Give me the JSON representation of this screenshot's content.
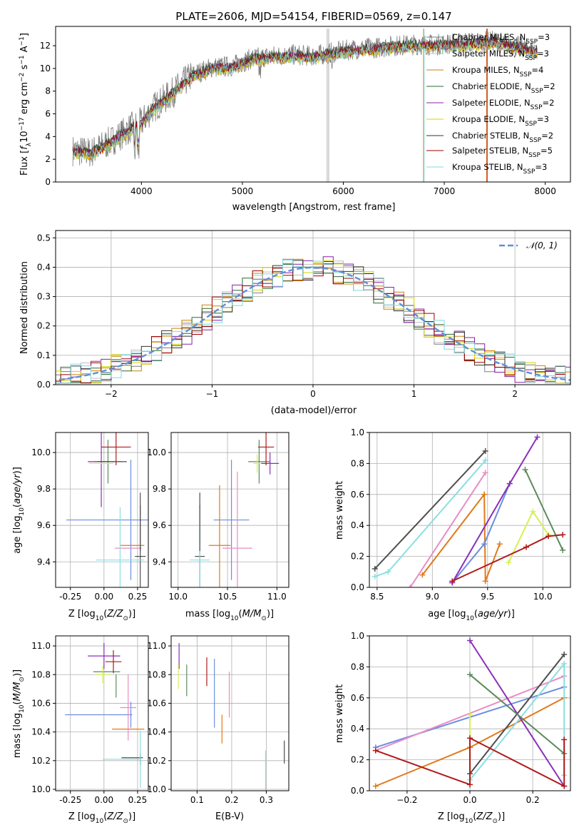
{
  "figure": {
    "title": "PLATE=2606, MJD=54154, FIBERID=0569, z=0.147"
  },
  "colors": {
    "cm": "#7f7f7f",
    "sm": "#bfbfbf",
    "km": "#d08000",
    "ce": "#2e6b2e",
    "se": "#8b1fa8",
    "ke": "#d4d400",
    "cs": "#333333",
    "ss": "#9b0000",
    "ks": "#7fd8e0",
    "blue": "#6a8ee0",
    "orange": "#e07a1a",
    "pink": "#e98cc4",
    "dark": "#4d4d4d",
    "green": "#5c8a5c",
    "purple": "#8b2fb8",
    "lime": "#d6ef5a",
    "red": "#b01a1a",
    "cyan": "#8adfe2",
    "normal": "#5f8fd8"
  },
  "chart_data": [
    {
      "type": "line",
      "xlabel": "wavelength [Angstrom, rest frame]",
      "ylabel": "Flux [f_λ10^-17 erg cm^-2 s^-1 A^-1]",
      "xlim": [
        3150,
        8250
      ],
      "ylim": [
        0,
        13.7
      ],
      "xticks": [
        4000,
        5000,
        6000,
        7000,
        8000
      ],
      "yticks": [
        0,
        2,
        4,
        6,
        8,
        10,
        12
      ],
      "series": [
        {
          "name": "Chabrier MILES, N_SSP=3",
          "key": "cm"
        },
        {
          "name": "Salpeter MILES, N_SSP=3",
          "key": "sm"
        },
        {
          "name": "Kroupa MILES, N_SSP=4",
          "key": "km"
        },
        {
          "name": "Chabrier ELODIE, N_SSP=2",
          "key": "ce"
        },
        {
          "name": "Salpeter ELODIE, N_SSP=2",
          "key": "se"
        },
        {
          "name": "Kroupa ELODIE, N_SSP=3",
          "key": "ke"
        },
        {
          "name": "Chabrier STELIB, N_SSP=2",
          "key": "cs"
        },
        {
          "name": "Salpeter STELIB, N_SSP=5",
          "key": "ss"
        },
        {
          "name": "Kroupa STELIB, N_SSP=3",
          "key": "ks"
        }
      ],
      "spectrum_shape": {
        "x": [
          3300,
          3500,
          3700,
          3900,
          4000,
          4100,
          4300,
          4500,
          4700,
          4900,
          5100,
          5300,
          5500,
          5700,
          5900,
          6100,
          6300,
          6500,
          6700,
          6900,
          7100,
          7300,
          7500,
          7700,
          7900
        ],
        "y": [
          2.8,
          2.6,
          3.6,
          4.8,
          5.2,
          6.4,
          7.8,
          9.4,
          10.1,
          10.2,
          10.9,
          11.1,
          11.2,
          11.1,
          11.4,
          11.7,
          11.8,
          12.0,
          12.1,
          12.1,
          12.2,
          12.3,
          12.4,
          12.0,
          11.6
        ]
      }
    },
    {
      "type": "histogram",
      "xlabel": "(data-model)/error",
      "ylabel": "Normed distribution",
      "xlim": [
        -2.55,
        2.55
      ],
      "ylim": [
        0,
        0.525
      ],
      "xticks": [
        -2,
        -1,
        0,
        1,
        2
      ],
      "yticks": [
        0.0,
        0.1,
        0.2,
        0.3,
        0.4,
        0.5
      ],
      "legend": "𝒩(0, 1)",
      "bin_width": 0.1
    },
    {
      "type": "errorbar",
      "xlabel": "Z [log10(Z/Z⊙)]",
      "ylabel": "age  [log10(age/yr)]",
      "xlim": [
        -0.36,
        0.33
      ],
      "ylim": [
        9.26,
        10.11
      ],
      "xticks": [
        "-0.25",
        "0.00",
        "0.25"
      ],
      "xtick_values": [
        -0.25,
        0.0,
        0.25
      ],
      "yticks": [
        "9.4",
        "9.6",
        "9.8",
        "10.0"
      ],
      "ytick_values": [
        9.4,
        9.6,
        9.8,
        10.0
      ],
      "points": [
        {
          "c": "blue",
          "x": 0.2,
          "xe": 0.48,
          "y": 9.63,
          "ye": 0.33
        },
        {
          "c": "orange",
          "x": 0.21,
          "xe": 0.09,
          "y": 9.49,
          "ye": 0.0
        },
        {
          "c": "pink",
          "x": 0.18,
          "xe": 0.1,
          "y": 9.475,
          "ye": 0.0
        },
        {
          "c": "dark",
          "x": 0.27,
          "xe": 0.04,
          "y": 9.43,
          "ye": 0.28
        },
        {
          "c": "green",
          "x": 0.03,
          "xe": 0.1,
          "y": 9.95,
          "ye": 0.12
        },
        {
          "c": "purple",
          "x": -0.02,
          "xe": 0.1,
          "y": 9.95,
          "ye": 0.25
        },
        {
          "c": "lime",
          "x": -0.02,
          "xe": 0.09,
          "y": 9.94,
          "ye": 0.0
        },
        {
          "c": "red",
          "x": 0.09,
          "xe": 0.11,
          "y": 10.03,
          "ye": 0.1
        },
        {
          "c": "cyan",
          "x": 0.12,
          "xe": 0.18,
          "y": 9.41,
          "ye": 0.29
        },
        {
          "c": "dark",
          "x": 0.06,
          "xe": 0.11,
          "y": 9.95,
          "ye": 0.0
        },
        {
          "c": "dark",
          "x": 0.27,
          "xe": 0.0,
          "y": 9.62,
          "ye": 0.16
        }
      ]
    },
    {
      "type": "errorbar",
      "xlabel": "mass [log10(M/M⊙)]",
      "ylabel": "",
      "xlim": [
        9.93,
        11.12
      ],
      "ylim": [
        9.26,
        10.11
      ],
      "xticks": [
        "10.0",
        "10.5",
        "11.0"
      ],
      "xtick_values": [
        10.0,
        10.5,
        11.0
      ],
      "yticks": [
        "9.4",
        "9.6",
        "9.8",
        "10.0"
      ],
      "ytick_values": [
        9.4,
        9.6,
        9.8,
        10.0
      ],
      "points": [
        {
          "c": "blue",
          "x": 10.54,
          "xe": 0.18,
          "y": 9.63,
          "ye": 0.33
        },
        {
          "c": "orange",
          "x": 10.42,
          "xe": 0.11,
          "y": 9.49,
          "ye": 0.33
        },
        {
          "c": "pink",
          "x": 10.6,
          "xe": 0.15,
          "y": 9.475,
          "ye": 0.42
        },
        {
          "c": "dark",
          "x": 10.22,
          "xe": 0.05,
          "y": 9.43,
          "ye": 0.28
        },
        {
          "c": "green",
          "x": 10.82,
          "xe": 0.11,
          "y": 9.95,
          "ye": 0.12
        },
        {
          "c": "purple",
          "x": 10.93,
          "xe": 0.09,
          "y": 9.94,
          "ye": 0.06
        },
        {
          "c": "lime",
          "x": 10.8,
          "xe": 0.04,
          "y": 9.94,
          "ye": 0.05
        },
        {
          "c": "red",
          "x": 10.89,
          "xe": 0.08,
          "y": 10.03,
          "ye": 0.1
        },
        {
          "c": "cyan",
          "x": 10.22,
          "xe": 0.1,
          "y": 9.41,
          "ye": 0.29
        },
        {
          "c": "dark",
          "x": 10.22,
          "xe": 0.0,
          "y": 9.62,
          "ye": 0.16
        }
      ]
    },
    {
      "type": "line",
      "xlabel": "age  [log10(age/yr)]",
      "ylabel": "mass weight",
      "xlim": [
        8.43,
        10.25
      ],
      "ylim": [
        0.0,
        1.0
      ],
      "xticks": [
        "8.5",
        "9.0",
        "9.5",
        "10.0"
      ],
      "xtick_values": [
        8.5,
        9.0,
        9.5,
        10.0
      ],
      "yticks": [
        "0.0",
        "0.2",
        "0.4",
        "0.6",
        "0.8",
        "1.0"
      ],
      "ytick_values": [
        0.0,
        0.2,
        0.4,
        0.6,
        0.8,
        1.0
      ],
      "series": [
        {
          "c": "dark",
          "x": [
            8.48,
            9.48
          ],
          "y": [
            0.12,
            0.88
          ]
        },
        {
          "c": "cyan",
          "x": [
            8.48,
            8.6,
            9.48
          ],
          "y": [
            0.07,
            0.1,
            0.82
          ]
        },
        {
          "c": "pink",
          "x": [
            8.8,
            9.48
          ],
          "y": [
            0.0,
            0.74
          ]
        },
        {
          "c": "orange",
          "x": [
            8.91,
            9.47,
            9.48,
            9.61
          ],
          "y": [
            0.08,
            0.6,
            0.04,
            0.28
          ]
        },
        {
          "c": "blue",
          "x": [
            9.18,
            9.47,
            9.7
          ],
          "y": [
            0.03,
            0.28,
            0.67
          ]
        },
        {
          "c": "purple",
          "x": [
            9.18,
            9.7,
            9.95
          ],
          "y": [
            0.03,
            0.67,
            0.97
          ]
        },
        {
          "c": "green",
          "x": [
            9.84,
            10.18
          ],
          "y": [
            0.76,
            0.24
          ]
        },
        {
          "c": "lime",
          "x": [
            9.69,
            9.91,
            10.05
          ],
          "y": [
            0.16,
            0.49,
            0.34
          ]
        },
        {
          "c": "red",
          "x": [
            9.18,
            9.85,
            10.05,
            10.18
          ],
          "y": [
            0.04,
            0.26,
            0.33,
            0.34
          ]
        }
      ]
    },
    {
      "type": "errorbar",
      "xlabel": "Z [log10(Z/Z⊙)]",
      "ylabel": "mass [log10(M/M⊙)]",
      "xlim": [
        -0.36,
        0.33
      ],
      "ylim": [
        9.99,
        11.07
      ],
      "xticks": [
        "-0.25",
        "0.00",
        "0.25"
      ],
      "xtick_values": [
        -0.25,
        0.0,
        0.25
      ],
      "yticks": [
        "10.0",
        "10.2",
        "10.4",
        "10.6",
        "10.8",
        "11.0"
      ],
      "ytick_values": [
        10.0,
        10.2,
        10.4,
        10.6,
        10.8,
        11.0
      ],
      "points": [
        {
          "c": "blue",
          "x": -0.04,
          "xe": 0.25,
          "y": 10.52,
          "ye": 0.0
        },
        {
          "c": "blue",
          "x": 0.2,
          "xe": 0.0,
          "y": 10.52,
          "ye": 0.09
        },
        {
          "c": "orange",
          "x": 0.18,
          "xe": 0.12,
          "y": 10.42,
          "ye": 0.0
        },
        {
          "c": "pink",
          "x": 0.18,
          "xe": 0.06,
          "y": 10.57,
          "ye": 0.23
        },
        {
          "c": "dark",
          "x": 0.21,
          "xe": 0.08,
          "y": 10.22,
          "ye": 0.0
        },
        {
          "c": "dark",
          "x": 0.27,
          "xe": 0.0,
          "y": 10.21,
          "ye": 0.04
        },
        {
          "c": "green",
          "x": 0.02,
          "xe": 0.1,
          "y": 10.82,
          "ye": 0.0
        },
        {
          "c": "green",
          "x": 0.09,
          "xe": 0.0,
          "y": 10.72,
          "ye": 0.08
        },
        {
          "c": "purple",
          "x": 0.0,
          "xe": 0.12,
          "y": 10.93,
          "ye": 0.09
        },
        {
          "c": "lime",
          "x": -0.01,
          "xe": 0.05,
          "y": 10.8,
          "ye": 0.06
        },
        {
          "c": "red",
          "x": 0.07,
          "xe": 0.06,
          "y": 10.89,
          "ye": 0.08
        },
        {
          "c": "cyan",
          "x": 0.13,
          "xe": 0.14,
          "y": 10.21,
          "ye": 0.0
        },
        {
          "c": "cyan",
          "x": 0.27,
          "xe": 0.0,
          "y": 10.21,
          "ye": 0.2
        }
      ]
    },
    {
      "type": "errorbar",
      "xlabel": "E(B-V)",
      "ylabel": "",
      "xlim": [
        0.025,
        0.365
      ],
      "ylim": [
        9.99,
        11.07
      ],
      "xticks": [
        "0.1",
        "0.2",
        "0.3"
      ],
      "xtick_values": [
        0.1,
        0.2,
        0.3
      ],
      "yticks": [
        "10.0",
        "10.2",
        "10.4",
        "10.6",
        "10.8",
        "11.0"
      ],
      "ytick_values": [
        10.0,
        10.2,
        10.4,
        10.6,
        10.8,
        11.0
      ],
      "points": [
        {
          "c": "blue",
          "x": 0.15,
          "xe": 0.0,
          "y": 10.67,
          "ye": 0.24
        },
        {
          "c": "orange",
          "x": 0.172,
          "xe": 0.0,
          "y": 10.42,
          "ye": 0.1
        },
        {
          "c": "pink",
          "x": 0.193,
          "xe": 0.0,
          "y": 10.66,
          "ye": 0.16
        },
        {
          "c": "dark",
          "x": 0.352,
          "xe": 0.0,
          "y": 10.26,
          "ye": 0.08
        },
        {
          "c": "green",
          "x": 0.07,
          "xe": 0.0,
          "y": 10.76,
          "ye": 0.11
        },
        {
          "c": "purple",
          "x": 0.048,
          "xe": 0.0,
          "y": 10.93,
          "ye": 0.09
        },
        {
          "c": "lime",
          "x": 0.046,
          "xe": 0.0,
          "y": 10.79,
          "ye": 0.09
        },
        {
          "c": "red",
          "x": 0.128,
          "xe": 0.0,
          "y": 10.82,
          "ye": 0.1
        },
        {
          "c": "cyan",
          "x": 0.298,
          "xe": 0.0,
          "y": 10.12,
          "ye": 0.15
        }
      ]
    },
    {
      "type": "line",
      "xlabel": "Z [log10(Z/Z⊙)]",
      "ylabel": "mass weight",
      "xlim": [
        -0.32,
        0.32
      ],
      "ylim": [
        0.0,
        1.0
      ],
      "xticks": [
        "−0.2",
        "0.0",
        "0.2"
      ],
      "xtick_values": [
        -0.2,
        0.0,
        0.2
      ],
      "yticks": [
        "0.0",
        "0.2",
        "0.4",
        "0.6",
        "0.8",
        "1.0"
      ],
      "ytick_values": [
        0.0,
        0.2,
        0.4,
        0.6,
        0.8,
        1.0
      ],
      "series": [
        {
          "c": "blue",
          "x": [
            -0.3,
            0.3
          ],
          "y": [
            0.28,
            0.67
          ]
        },
        {
          "c": "pink",
          "x": [
            -0.3,
            0.3
          ],
          "y": [
            0.26,
            0.74
          ]
        },
        {
          "c": "orange",
          "x": [
            -0.3,
            0.0,
            0.3
          ],
          "y": [
            0.03,
            0.28,
            0.6
          ]
        },
        {
          "c": "dark",
          "x": [
            0.0,
            0.3
          ],
          "y": [
            0.11,
            0.88
          ]
        },
        {
          "c": "cyan",
          "x": [
            0.0,
            0.3,
            0.3
          ],
          "y": [
            0.07,
            0.82,
            0.1
          ]
        },
        {
          "c": "purple",
          "x": [
            0.0,
            0.3
          ],
          "y": [
            0.97,
            0.03
          ]
        },
        {
          "c": "green",
          "x": [
            0.0,
            0.3
          ],
          "y": [
            0.75,
            0.24
          ]
        },
        {
          "c": "lime",
          "x": [
            0.0,
            0.0
          ],
          "y": [
            0.49,
            0.34
          ]
        },
        {
          "c": "red",
          "x": [
            -0.3,
            0.0,
            0.0,
            0.3,
            0.3
          ],
          "y": [
            0.26,
            0.04,
            0.34,
            0.03,
            0.33
          ]
        }
      ]
    }
  ]
}
